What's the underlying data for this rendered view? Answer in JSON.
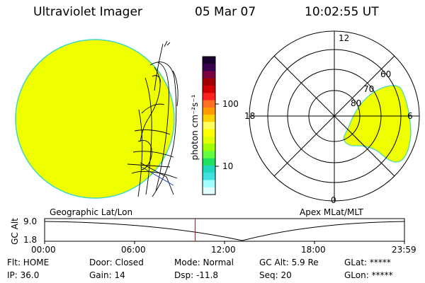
{
  "header": {
    "title": "Ultraviolet Imager",
    "date": "05 Mar 07",
    "time": "10:02:55 UT"
  },
  "colorbar": {
    "unit_label": "photon cm⁻²s⁻¹",
    "tick_100": "100",
    "tick_10": "10",
    "colors": [
      "#1a0030",
      "#3a0050",
      "#7a0040",
      "#a00000",
      "#d00000",
      "#ff2020",
      "#ff7020",
      "#ff9a00",
      "#ffd000",
      "#ffff60",
      "#ffff00",
      "#e0ff00",
      "#a0ff00",
      "#60ff40",
      "#20e060",
      "#20d8c0",
      "#40e0e0",
      "#a0ffff",
      "#e0ffff"
    ]
  },
  "left_panel": {
    "label": "Geographic Lat/Lon",
    "disk_color": "#f0ff00"
  },
  "right_panel": {
    "label": "Apex MLat/MLT",
    "hour_12": "12",
    "hour_18": "18",
    "hour_6": "6",
    "hour_0": "0",
    "lat_80": "80",
    "lat_70": "70",
    "lat_60": "60",
    "oval_color": "#f0ff00"
  },
  "altitude_plot": {
    "axis_label": "GC Alt",
    "y_hi": "9.0",
    "y_lo": "1.8",
    "times": [
      "00:00",
      "06:00",
      "12:00",
      "18:00",
      "23:59"
    ],
    "current_time_fraction": 0.4186,
    "marker_color": "#d00000"
  },
  "status": {
    "flt": "Flt: HOME",
    "ip": "IP: 36.0",
    "door": "Door: Closed",
    "gain": "Gain: 14",
    "mode": "Mode: Normal",
    "dsp": "Dsp:  -11.8",
    "gcalt": "GC Alt: 5.9 Re",
    "seq": "Seq: 20",
    "glat": "GLat: *****",
    "glon": "GLon: *****"
  }
}
